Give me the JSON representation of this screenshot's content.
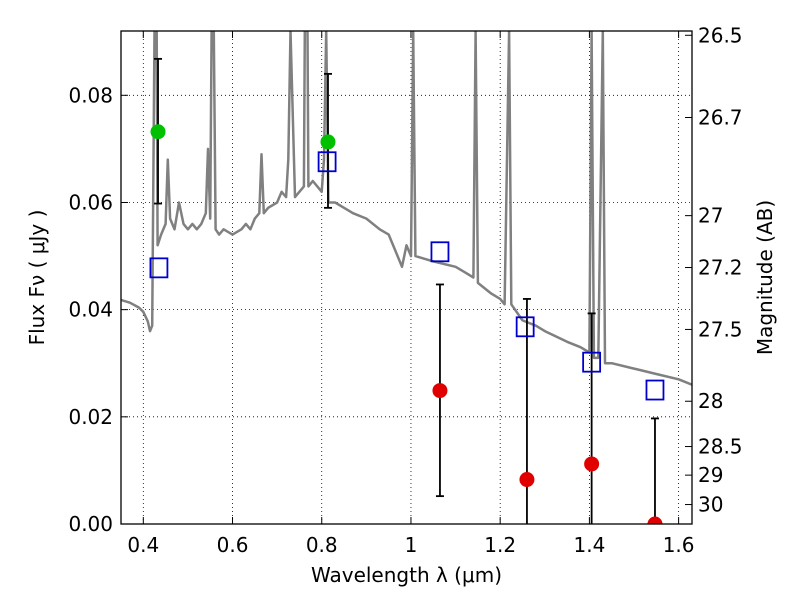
{
  "chart_data": {
    "type": "scatter",
    "title": "",
    "xlabel": "Wavelength  λ (μm)",
    "ylabel": "Flux  Fν  ( μJy )",
    "ylabel_right": "Magnitude (AB)",
    "xlim": [
      0.35,
      1.63
    ],
    "ylim": [
      0.0,
      0.092
    ],
    "grid": true,
    "grid_style": "dotted",
    "x_ticks": [
      {
        "value": 0.4,
        "label": "0.4"
      },
      {
        "value": 0.6,
        "label": "0.6"
      },
      {
        "value": 0.8,
        "label": "0.8"
      },
      {
        "value": 1.0,
        "label": "1"
      },
      {
        "value": 1.2,
        "label": "1.2"
      },
      {
        "value": 1.4,
        "label": "1.4"
      },
      {
        "value": 1.6,
        "label": "1.6"
      }
    ],
    "y_ticks": [
      {
        "value": 0.0,
        "label": "0.00"
      },
      {
        "value": 0.02,
        "label": "0.02"
      },
      {
        "value": 0.04,
        "label": "0.04"
      },
      {
        "value": 0.06,
        "label": "0.06"
      },
      {
        "value": 0.08,
        "label": "0.08"
      }
    ],
    "y_right_ticks": [
      {
        "mag": 26.5,
        "label": "26.5"
      },
      {
        "mag": 26.7,
        "label": "26.7"
      },
      {
        "mag": 27.0,
        "label": "27"
      },
      {
        "mag": 27.2,
        "label": "27.2"
      },
      {
        "mag": 27.5,
        "label": "27.5"
      },
      {
        "mag": 28.0,
        "label": "28"
      },
      {
        "mag": 28.5,
        "label": "28.5"
      },
      {
        "mag": 29.0,
        "label": "29"
      },
      {
        "mag": 30.0,
        "label": "30"
      }
    ],
    "series": [
      {
        "kind": "line",
        "color": "#808080",
        "points": [
          [
            0.35,
            0.0418
          ],
          [
            0.37,
            0.0413
          ],
          [
            0.39,
            0.0404
          ],
          [
            0.4,
            0.0396
          ],
          [
            0.41,
            0.0378
          ],
          [
            0.415,
            0.036
          ],
          [
            0.42,
            0.037
          ],
          [
            0.425,
            0.092
          ],
          [
            0.43,
            0.092
          ],
          [
            0.432,
            0.052
          ],
          [
            0.44,
            0.054
          ],
          [
            0.45,
            0.056
          ],
          [
            0.455,
            0.068
          ],
          [
            0.46,
            0.057
          ],
          [
            0.47,
            0.055
          ],
          [
            0.48,
            0.06
          ],
          [
            0.49,
            0.056
          ],
          [
            0.5,
            0.055
          ],
          [
            0.51,
            0.056
          ],
          [
            0.52,
            0.055
          ],
          [
            0.53,
            0.056
          ],
          [
            0.54,
            0.058
          ],
          [
            0.545,
            0.07
          ],
          [
            0.55,
            0.057
          ],
          [
            0.553,
            0.092
          ],
          [
            0.558,
            0.092
          ],
          [
            0.562,
            0.055
          ],
          [
            0.57,
            0.054
          ],
          [
            0.58,
            0.055
          ],
          [
            0.6,
            0.054
          ],
          [
            0.62,
            0.055
          ],
          [
            0.63,
            0.056
          ],
          [
            0.64,
            0.055
          ],
          [
            0.65,
            0.057
          ],
          [
            0.66,
            0.058
          ],
          [
            0.665,
            0.069
          ],
          [
            0.67,
            0.058
          ],
          [
            0.68,
            0.059
          ],
          [
            0.7,
            0.06
          ],
          [
            0.71,
            0.062
          ],
          [
            0.72,
            0.061
          ],
          [
            0.725,
            0.068
          ],
          [
            0.73,
            0.092
          ],
          [
            0.74,
            0.061
          ],
          [
            0.75,
            0.062
          ],
          [
            0.76,
            0.063
          ],
          [
            0.762,
            0.092
          ],
          [
            0.768,
            0.092
          ],
          [
            0.77,
            0.063
          ],
          [
            0.78,
            0.064
          ],
          [
            0.79,
            0.063
          ],
          [
            0.8,
            0.062
          ],
          [
            0.805,
            0.068
          ],
          [
            0.81,
            0.092
          ],
          [
            0.815,
            0.06
          ],
          [
            0.83,
            0.06
          ],
          [
            0.85,
            0.059
          ],
          [
            0.87,
            0.058
          ],
          [
            0.9,
            0.057
          ],
          [
            0.93,
            0.055
          ],
          [
            0.95,
            0.054
          ],
          [
            0.97,
            0.05
          ],
          [
            0.98,
            0.048
          ],
          [
            0.99,
            0.052
          ],
          [
            1.0,
            0.05
          ],
          [
            1.005,
            0.092
          ],
          [
            1.01,
            0.05
          ],
          [
            1.05,
            0.049
          ],
          [
            1.1,
            0.048
          ],
          [
            1.12,
            0.047
          ],
          [
            1.14,
            0.046
          ],
          [
            1.145,
            0.092
          ],
          [
            1.15,
            0.045
          ],
          [
            1.18,
            0.043
          ],
          [
            1.2,
            0.042
          ],
          [
            1.21,
            0.041
          ],
          [
            1.22,
            0.092
          ],
          [
            1.225,
            0.041
          ],
          [
            1.25,
            0.038
          ],
          [
            1.28,
            0.037
          ],
          [
            1.3,
            0.036
          ],
          [
            1.35,
            0.034
          ],
          [
            1.38,
            0.033
          ],
          [
            1.4,
            0.032
          ],
          [
            1.405,
            0.092
          ],
          [
            1.41,
            0.031
          ],
          [
            1.42,
            0.031
          ],
          [
            1.43,
            0.092
          ],
          [
            1.435,
            0.03
          ],
          [
            1.45,
            0.03
          ],
          [
            1.5,
            0.029
          ],
          [
            1.55,
            0.028
          ],
          [
            1.6,
            0.027
          ],
          [
            1.63,
            0.026
          ]
        ]
      },
      {
        "kind": "open-square",
        "color": "#0000cc",
        "points": [
          [
            0.435,
            0.0478
          ],
          [
            0.812,
            0.0676
          ],
          [
            1.065,
            0.0508
          ],
          [
            1.256,
            0.0368
          ],
          [
            1.405,
            0.0302
          ],
          [
            1.547,
            0.025
          ]
        ]
      },
      {
        "kind": "filled-circle",
        "color": "#00c000",
        "points": [
          {
            "x": 0.433,
            "y": 0.0732,
            "yerr_low": 0.0598,
            "yerr_high": 0.0868
          },
          {
            "x": 0.814,
            "y": 0.0713,
            "yerr_low": 0.059,
            "yerr_high": 0.084
          }
        ]
      },
      {
        "kind": "filled-circle",
        "color": "#e00000",
        "points": [
          {
            "x": 1.065,
            "y": 0.0249,
            "yerr_low": 0.0052,
            "yerr_high": 0.0447
          },
          {
            "x": 1.26,
            "y": 0.0083,
            "yerr_low": 0.0,
            "yerr_high": 0.042
          },
          {
            "x": 1.405,
            "y": 0.0112,
            "yerr_low": 0.0,
            "yerr_high": 0.0393
          },
          {
            "x": 1.547,
            "y": 0.0,
            "yerr_low": 0.0,
            "yerr_high": 0.0197
          }
        ]
      }
    ]
  }
}
